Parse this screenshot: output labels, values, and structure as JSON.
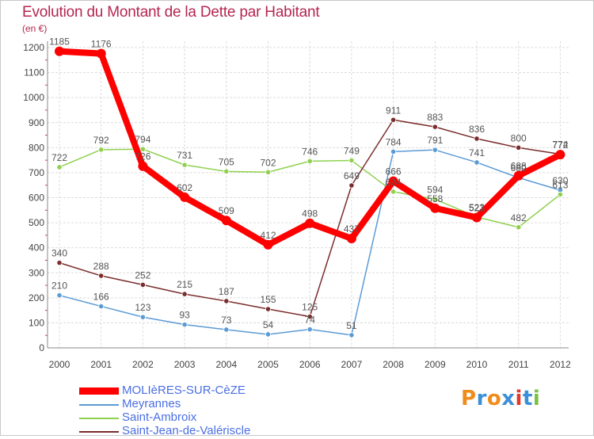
{
  "title": "Evolution du Montant de la Dette par Habitant",
  "subtitle": "(en €)",
  "logo": {
    "text": "Proxiti",
    "colors": [
      "#f08c1c",
      "#3b8fd8",
      "#f08c1c",
      "#3b8fd8",
      "#e23a2a",
      "#3b8fd8",
      "#7ac142"
    ]
  },
  "chart_data": {
    "type": "line",
    "x": [
      "2000",
      "2001",
      "2002",
      "2003",
      "2004",
      "2005",
      "2006",
      "2007",
      "2008",
      "2009",
      "2010",
      "2011",
      "2012"
    ],
    "ylim": [
      0,
      1200
    ],
    "yticks": [
      "0",
      "100",
      "200",
      "300",
      "400",
      "500",
      "600",
      "700",
      "800",
      "900",
      "1000",
      "1100",
      "1200"
    ],
    "grid": true,
    "legend_position": "bottom-left",
    "series": [
      {
        "name": "MOLIèRES-SUR-CèZE",
        "color": "#ff0000",
        "values": [
          1185,
          1176,
          726,
          602,
          509,
          412,
          498,
          437,
          666,
          558,
          521,
          688,
          772
        ],
        "labels": [
          "1185",
          "1176",
          "726",
          "602",
          "509",
          "412",
          "498",
          "437",
          "666",
          "558",
          "521",
          "688",
          "772"
        ]
      },
      {
        "name": "Meyrannes",
        "color": "#5b9bd5",
        "values": [
          210,
          166,
          123,
          93,
          73,
          54,
          74,
          51,
          784,
          791,
          741,
          680,
          630
        ],
        "labels": [
          "210",
          "166",
          "123",
          "93",
          "73",
          "54",
          "74",
          "51",
          "784",
          "791",
          "741",
          "680",
          "630"
        ]
      },
      {
        "name": "Saint-Ambroix",
        "color": "#8fd14f",
        "values": [
          722,
          792,
          794,
          731,
          705,
          702,
          746,
          749,
          624,
          594,
          523,
          482,
          613
        ],
        "labels": [
          "722",
          "792",
          "794",
          "731",
          "705",
          "702",
          "746",
          "749",
          "624",
          "594",
          "523",
          "482",
          "613"
        ]
      },
      {
        "name": "Saint-Jean-de-Valériscle",
        "color": "#7b2c2c",
        "values": [
          340,
          288,
          252,
          215,
          187,
          155,
          125,
          649,
          911,
          883,
          836,
          800,
          774
        ],
        "labels": [
          "340",
          "288",
          "252",
          "215",
          "187",
          "155",
          "125",
          "649",
          "911",
          "883",
          "836",
          "800",
          "774"
        ]
      }
    ]
  }
}
